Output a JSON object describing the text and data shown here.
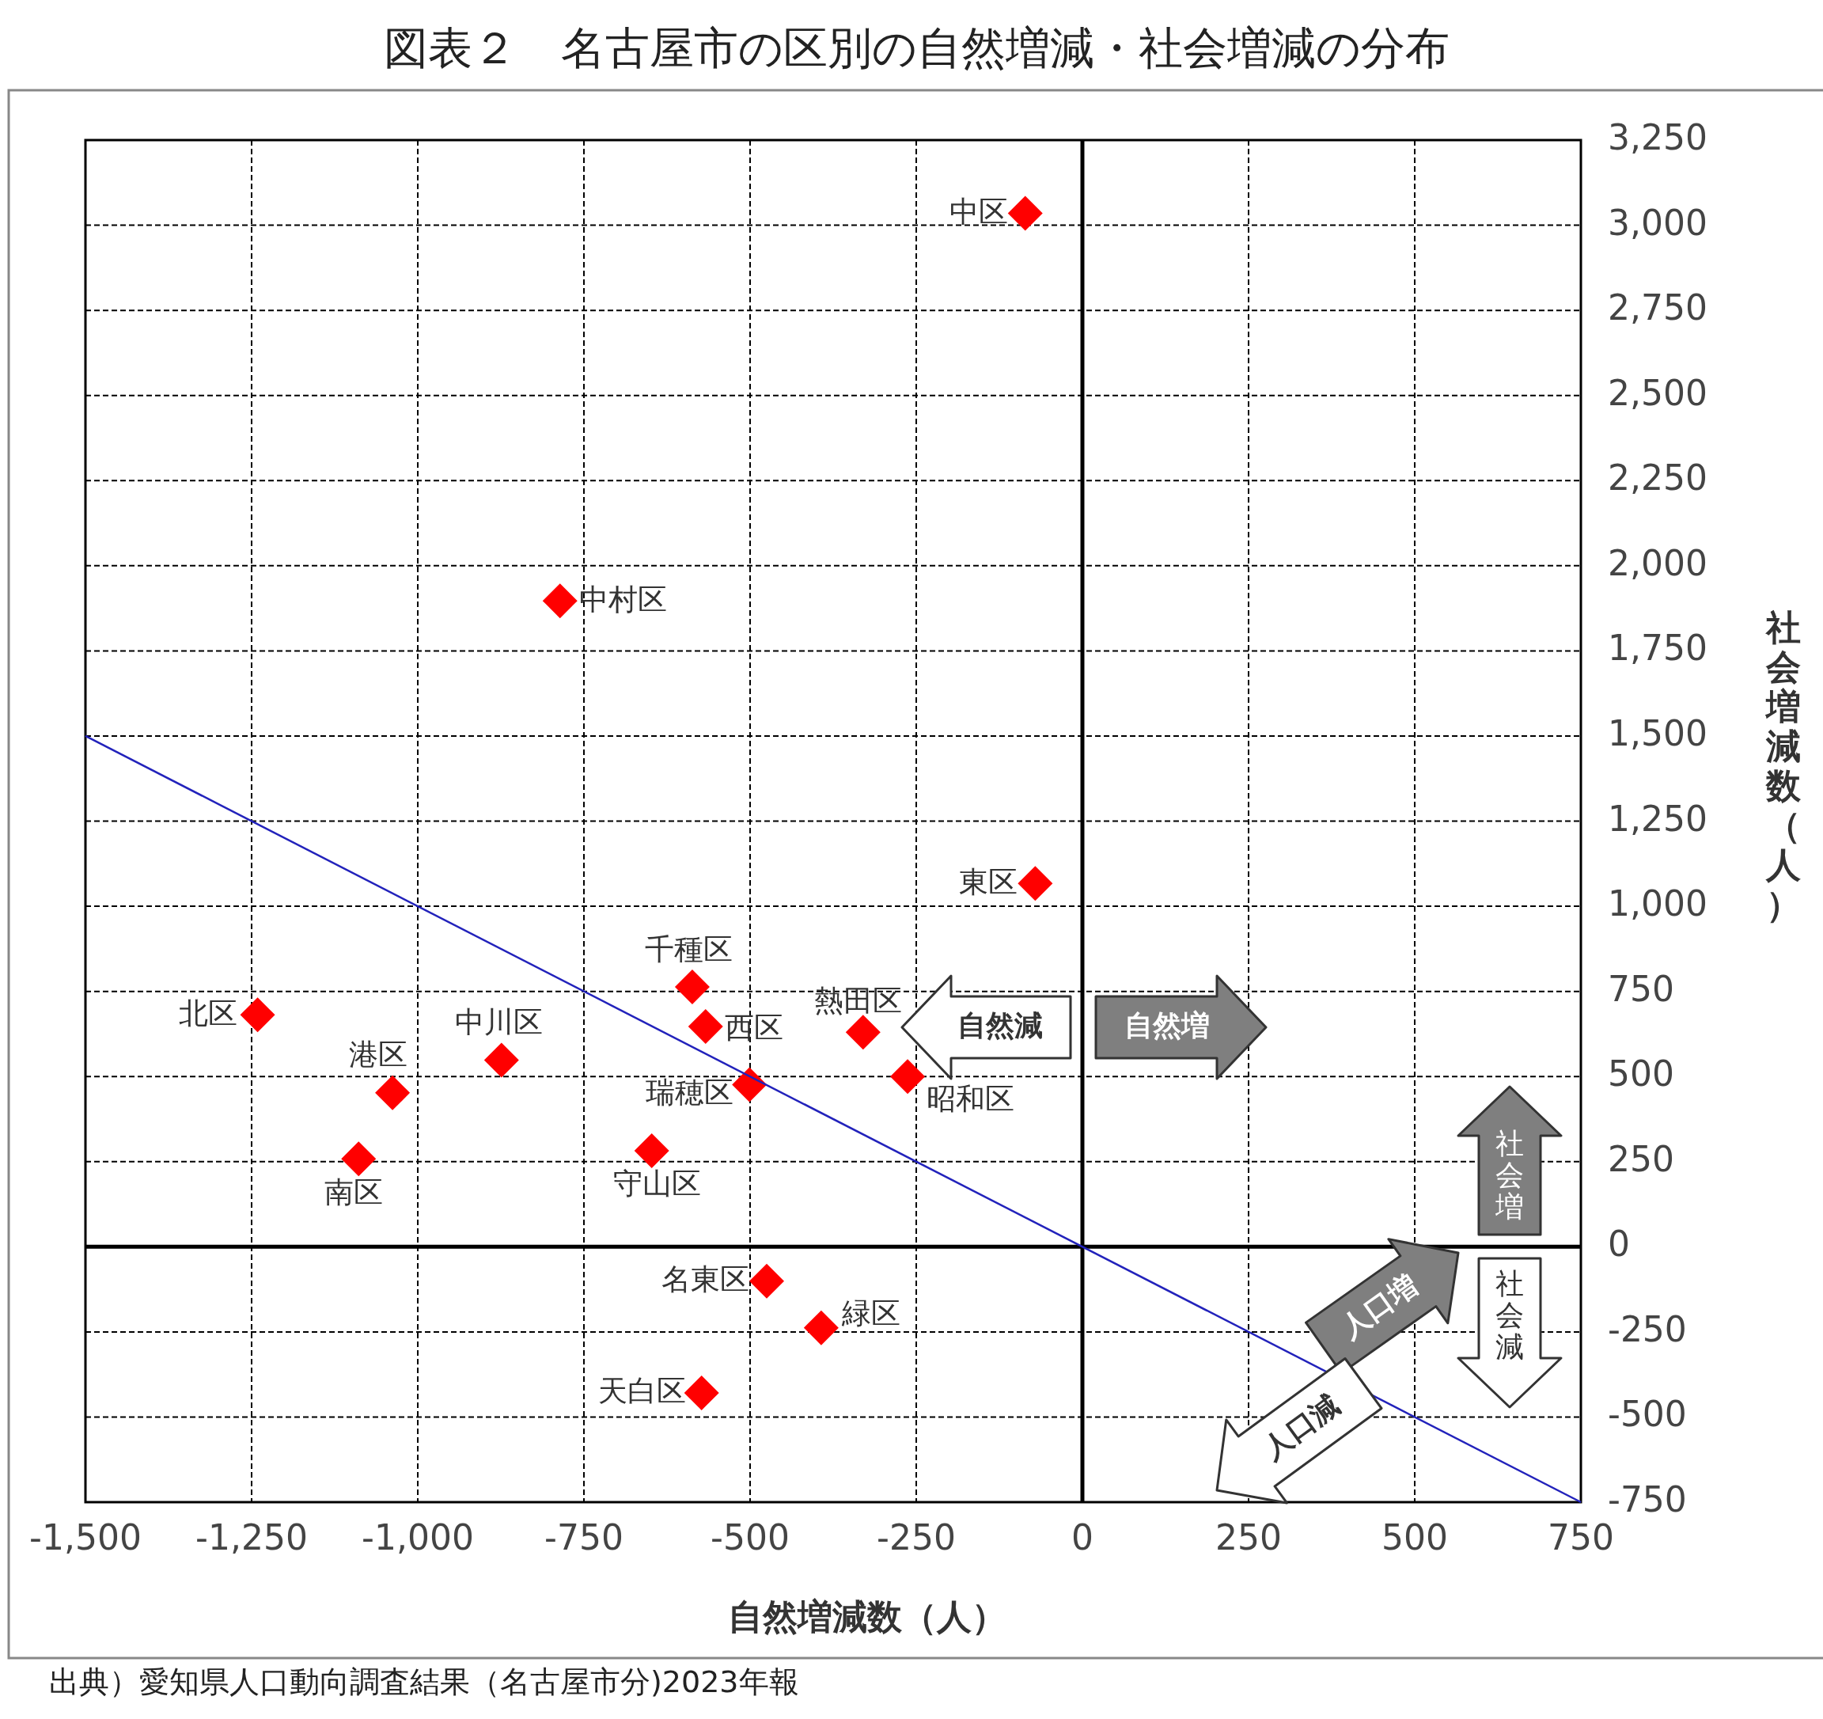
{
  "chart_data": {
    "type": "scatter",
    "title": "図表２　名古屋市の区別の自然増減・社会増減の分布",
    "xlabel": "自然増減数（人）",
    "ylabel": "社会増減数（人）",
    "xlim": [
      -1500,
      750
    ],
    "ylim": [
      -750,
      3250
    ],
    "xticks": [
      {
        "value": -1500,
        "label": "-1,500"
      },
      {
        "value": -1250,
        "label": "-1,250"
      },
      {
        "value": -1000,
        "label": "-1,000"
      },
      -750,
      -500,
      -250,
      0,
      250,
      500,
      750
    ],
    "yticks": [
      -750,
      -500,
      -250,
      0,
      250,
      500,
      750,
      {
        "value": 1000,
        "label": "1,000"
      },
      {
        "value": 1250,
        "label": "1,250"
      },
      {
        "value": 1500,
        "label": "1,500"
      },
      {
        "value": 1750,
        "label": "1,750"
      },
      {
        "value": 2000,
        "label": "2,000"
      },
      {
        "value": 2250,
        "label": "2,250"
      },
      {
        "value": 2500,
        "label": "2,500"
      },
      {
        "value": 2750,
        "label": "2,750"
      },
      {
        "value": 3000,
        "label": "3,000"
      },
      {
        "value": 3250,
        "label": "3,250"
      }
    ],
    "grid": true,
    "marker": "diamond",
    "series": [
      {
        "color": "#ff0000",
        "x": [
          -86,
          -786,
          -71,
          -587,
          -1241,
          -567,
          -330,
          -874,
          -1038,
          -263,
          -501,
          -648,
          -1089,
          -475,
          -393,
          -573
        ],
        "values": [
          3035,
          1897,
          1067,
          763,
          681,
          647,
          630,
          548,
          452,
          500,
          476,
          282,
          258,
          -101,
          -238,
          -429
        ]
      },
      {
        "type": "line",
        "marker": "none",
        "color": "#2222bb",
        "x": [
          -1500,
          750
        ],
        "values": [
          1500,
          -750
        ]
      }
    ],
    "annotations": [
      {
        "text": "中区",
        "x": -86,
        "y": 3035
      },
      {
        "text": "中村区",
        "x": -786,
        "y": 1897
      },
      {
        "text": "東区",
        "x": -71,
        "y": 1067
      },
      {
        "text": "千種区",
        "x": -587,
        "y": 763
      },
      {
        "text": "北区",
        "x": -1241,
        "y": 681
      },
      {
        "text": "西区",
        "x": -567,
        "y": 647
      },
      {
        "text": "熱田区",
        "x": -330,
        "y": 630
      },
      {
        "text": "中川区",
        "x": -874,
        "y": 548
      },
      {
        "text": "港区",
        "x": -1038,
        "y": 452
      },
      {
        "text": "昭和区",
        "x": -263,
        "y": 500
      },
      {
        "text": "瑞穂区",
        "x": -501,
        "y": 476
      },
      {
        "text": "守山区",
        "x": -648,
        "y": 282
      },
      {
        "text": "南区",
        "x": -1089,
        "y": 258
      },
      {
        "text": "名東区",
        "x": -475,
        "y": -101
      },
      {
        "text": "緑区",
        "x": -393,
        "y": -238
      },
      {
        "text": "天白区",
        "x": -573,
        "y": -429
      },
      "自然減",
      "自然増",
      "社会増",
      "社会減",
      "人口増",
      "人口減",
      "出典）愛知県人口動向調査結果（名古屋市分)2023年報"
    ]
  }
}
